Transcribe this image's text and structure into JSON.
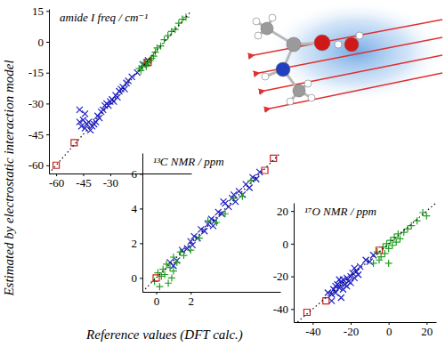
{
  "figure": {
    "x_label": "Reference values (DFT calc.)",
    "y_label": "Estimated by electrostatic interaction model"
  },
  "chart_data": [
    {
      "type": "scatter",
      "title": "amide I freq / cm⁻¹",
      "xlim": [
        -64,
        15
      ],
      "ylim": [
        -64,
        16
      ],
      "xticks": [
        -60,
        -45,
        -30
      ],
      "yticks": [
        -60,
        -45,
        -30,
        -15,
        0,
        15
      ],
      "series": [
        {
          "color": "#2020c8",
          "marker": "x",
          "x": [
            -47,
            -46,
            -45,
            -44,
            -43,
            -42,
            -41,
            -40,
            -39,
            -38,
            -37,
            -36,
            -35,
            -34,
            -33,
            -32,
            -31,
            -30,
            -29,
            -28,
            -27,
            -26,
            -25,
            -24,
            -23,
            -22,
            -21,
            -20,
            -47,
            -44,
            -18,
            -15,
            -12,
            -10,
            -9
          ],
          "values": [
            -39,
            -41,
            -38,
            -42,
            -40,
            -39,
            -43,
            -41,
            -40,
            -39,
            -36,
            -37,
            -34,
            -33,
            -31,
            -30,
            -31,
            -29,
            -28,
            -29,
            -26,
            -27,
            -24,
            -23,
            -22,
            -23,
            -20,
            -19,
            -33,
            -35,
            -17,
            -15,
            -11,
            -10,
            -9
          ]
        },
        {
          "color": "#20a020",
          "marker": "plus",
          "x": [
            -14,
            -12,
            -11,
            -10,
            -9,
            -8,
            -7,
            -6,
            -5,
            -4,
            -2,
            0,
            2,
            4,
            6,
            8,
            10,
            12,
            -13,
            -10
          ],
          "values": [
            -13,
            -12,
            -10,
            -11,
            -10,
            -9,
            -8,
            -7,
            -5,
            -3,
            -2,
            1,
            3,
            5,
            6,
            9,
            11,
            12,
            -14,
            -12
          ]
        },
        {
          "color": "#d02020",
          "marker": "square",
          "x": [
            -60,
            -50,
            -9
          ],
          "values": [
            -60,
            -49,
            -10
          ]
        },
        {
          "type": "line",
          "color": "#000000",
          "line_style": "dotted",
          "x": [
            -64,
            15
          ],
          "values": [
            -64,
            15
          ]
        }
      ]
    },
    {
      "type": "scatter",
      "title": "¹³C NMR / ppm",
      "xlim": [
        -0.8,
        7.2
      ],
      "ylim": [
        -0.8,
        7.2
      ],
      "xticks": [
        0,
        2
      ],
      "yticks": [
        0,
        2,
        4,
        6
      ],
      "series": [
        {
          "color": "#2020c8",
          "marker": "x",
          "x": [
            1.2,
            1.5,
            1.8,
            2.0,
            2.2,
            2.4,
            2.6,
            2.8,
            3.0,
            3.2,
            3.4,
            3.6,
            3.8,
            4.0,
            4.2,
            4.4,
            4.6,
            4.8,
            5.0,
            5.2,
            5.4,
            5.6,
            5.8,
            6.0,
            2.1,
            3.3,
            4.5,
            3.9,
            0.8,
            1.0
          ],
          "values": [
            1.0,
            1.6,
            1.7,
            2.1,
            2.4,
            2.3,
            2.8,
            2.7,
            3.1,
            3.4,
            3.3,
            3.8,
            3.7,
            4.3,
            4.1,
            4.6,
            4.4,
            5.0,
            4.8,
            5.4,
            5.2,
            5.8,
            5.7,
            6.1,
            1.9,
            3.0,
            4.8,
            4.4,
            0.9,
            0.7
          ]
        },
        {
          "color": "#20a020",
          "marker": "plus",
          "x": [
            -0.1,
            0.1,
            0.3,
            0.4,
            0.5,
            0.6,
            0.8,
            0.9,
            1.0,
            1.2,
            1.4,
            1.6,
            1.0,
            2.0,
            2.5,
            3.0,
            3.5,
            4.0,
            4.5,
            5.0,
            5.5,
            0.2,
            0.7
          ],
          "values": [
            -0.2,
            0.3,
            0.1,
            0.5,
            0.2,
            0.8,
            0.6,
            0.0,
            1.2,
            0.9,
            1.5,
            1.3,
            0.4,
            1.6,
            2.3,
            3.3,
            3.2,
            3.7,
            4.6,
            4.7,
            5.6,
            -0.5,
            -0.3
          ]
        },
        {
          "color": "#d02020",
          "marker": "square",
          "x": [
            0.0,
            6.3,
            6.8
          ],
          "values": [
            0.0,
            6.2,
            6.9
          ]
        },
        {
          "type": "line",
          "color": "#000000",
          "line_style": "dotted",
          "x": [
            -0.8,
            7.2
          ],
          "values": [
            -0.8,
            7.2
          ]
        }
      ]
    },
    {
      "type": "scatter",
      "title": "¹⁷O NMR / ppm",
      "xlim": [
        -50,
        25
      ],
      "ylim": [
        -48,
        25
      ],
      "xticks": [
        -40,
        -20,
        0,
        20
      ],
      "yticks": [
        -40,
        -20,
        0,
        20
      ],
      "series": [
        {
          "color": "#2020c8",
          "marker": "x",
          "x": [
            -32,
            -30,
            -29,
            -28,
            -27,
            -26,
            -25,
            -24,
            -23,
            -22,
            -21,
            -20,
            -19,
            -18,
            -17,
            -16,
            -24,
            -22,
            -20,
            -26,
            -28,
            -18,
            -15,
            -12,
            -10,
            -8,
            -30,
            -25
          ],
          "values": [
            -30,
            -31,
            -28,
            -30,
            -25,
            -27,
            -24,
            -22,
            -25,
            -21,
            -23,
            -20,
            -18,
            -21,
            -17,
            -19,
            -28,
            -26,
            -24,
            -22,
            -26,
            -15,
            -14,
            -10,
            -11,
            -7,
            -35,
            -33
          ]
        },
        {
          "color": "#20a020",
          "marker": "plus",
          "x": [
            -6,
            -4,
            -3,
            -2,
            -1,
            0,
            1,
            2,
            3,
            4,
            5,
            6,
            8,
            10,
            12,
            15,
            18,
            20,
            -5,
            0,
            -8
          ],
          "values": [
            -5,
            -8,
            -2,
            -6,
            0,
            -3,
            2,
            -1,
            4,
            1,
            6,
            3,
            7,
            9,
            11,
            14,
            19,
            17,
            -10,
            -12,
            -12
          ]
        },
        {
          "color": "#d02020",
          "marker": "square",
          "x": [
            -43,
            -33,
            -5
          ],
          "values": [
            -42,
            -35,
            -4
          ]
        },
        {
          "type": "line",
          "color": "#000000",
          "line_style": "dotted",
          "x": [
            -48,
            25
          ],
          "values": [
            -48,
            25
          ]
        }
      ]
    }
  ]
}
